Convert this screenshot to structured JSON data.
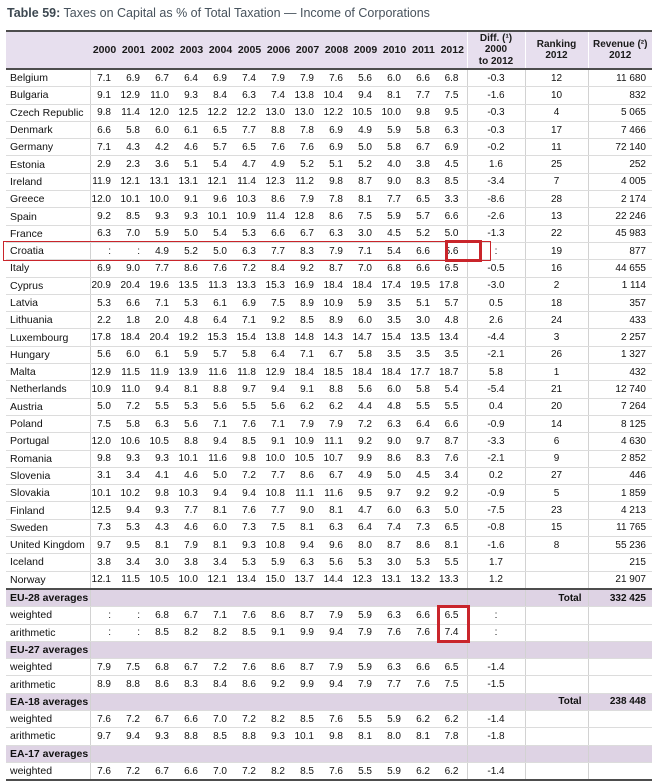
{
  "title": {
    "label": "Table 59:",
    "text": "Taxes on Capital as % of Total Taxation — Income of Corporations"
  },
  "colors": {
    "annotation_red": "#c9252b",
    "header_bg": "#e7dfee",
    "section_band_bg": "#ded3e4",
    "dark_rule": "#4d4d4d",
    "title_color": "#3d4851"
  },
  "table": {
    "year_columns": [
      "2000",
      "2001",
      "2002",
      "2003",
      "2004",
      "2005",
      "2006",
      "2007",
      "2008",
      "2009",
      "2010",
      "2011",
      "2012"
    ],
    "diff_header_lines": [
      "Diff. (¹)",
      "2000",
      "to 2012"
    ],
    "ranking_header_lines": [
      "Ranking",
      "2012"
    ],
    "revenue_header_lines": [
      "Revenue (²)",
      "2012"
    ],
    "rows": [
      {
        "name": "Belgium",
        "type": "country",
        "values": [
          "7.1",
          "6.9",
          "6.7",
          "6.4",
          "6.9",
          "7.4",
          "7.9",
          "7.9",
          "7.6",
          "5.6",
          "6.0",
          "6.6",
          "6.8"
        ],
        "diff": "-0.3",
        "ranking": "12",
        "revenue": "11 680"
      },
      {
        "name": "Bulgaria",
        "type": "country",
        "values": [
          "9.1",
          "12.9",
          "11.0",
          "9.3",
          "8.4",
          "6.3",
          "7.4",
          "13.8",
          "10.4",
          "9.4",
          "8.1",
          "7.7",
          "7.5"
        ],
        "diff": "-1.6",
        "ranking": "10",
        "revenue": "832"
      },
      {
        "name": "Czech Republic",
        "type": "country",
        "values": [
          "9.8",
          "11.4",
          "12.0",
          "12.5",
          "12.2",
          "12.2",
          "13.0",
          "13.0",
          "12.2",
          "10.5",
          "10.0",
          "9.8",
          "9.5"
        ],
        "diff": "-0.3",
        "ranking": "4",
        "revenue": "5 065"
      },
      {
        "name": "Denmark",
        "type": "country",
        "values": [
          "6.6",
          "5.8",
          "6.0",
          "6.1",
          "6.5",
          "7.7",
          "8.8",
          "7.8",
          "6.9",
          "4.9",
          "5.9",
          "5.8",
          "6.3"
        ],
        "diff": "-0.3",
        "ranking": "17",
        "revenue": "7 466"
      },
      {
        "name": "Germany",
        "type": "country",
        "values": [
          "7.1",
          "4.3",
          "4.2",
          "4.6",
          "5.7",
          "6.5",
          "7.6",
          "7.6",
          "6.9",
          "5.0",
          "5.8",
          "6.7",
          "6.9"
        ],
        "diff": "-0.2",
        "ranking": "11",
        "revenue": "72 140"
      },
      {
        "name": "Estonia",
        "type": "country",
        "values": [
          "2.9",
          "2.3",
          "3.6",
          "5.1",
          "5.4",
          "4.7",
          "4.9",
          "5.2",
          "5.1",
          "5.2",
          "4.0",
          "3.8",
          "4.5"
        ],
        "diff": "1.6",
        "ranking": "25",
        "revenue": "252"
      },
      {
        "name": "Ireland",
        "type": "country",
        "values": [
          "11.9",
          "12.1",
          "13.1",
          "13.1",
          "12.1",
          "11.4",
          "12.3",
          "11.2",
          "9.8",
          "8.7",
          "9.0",
          "8.3",
          "8.5"
        ],
        "diff": "-3.4",
        "ranking": "7",
        "revenue": "4 005"
      },
      {
        "name": "Greece",
        "type": "country",
        "values": [
          "12.0",
          "10.1",
          "10.0",
          "9.1",
          "9.6",
          "10.3",
          "8.6",
          "7.9",
          "7.8",
          "8.1",
          "7.7",
          "6.5",
          "3.3"
        ],
        "diff": "-8.6",
        "ranking": "28",
        "revenue": "2 174"
      },
      {
        "name": "Spain",
        "type": "country",
        "values": [
          "9.2",
          "8.5",
          "9.3",
          "9.3",
          "10.1",
          "10.9",
          "11.4",
          "12.8",
          "8.6",
          "7.5",
          "5.9",
          "5.7",
          "6.6"
        ],
        "diff": "-2.6",
        "ranking": "13",
        "revenue": "22 246"
      },
      {
        "name": "France",
        "type": "country",
        "values": [
          "6.3",
          "7.0",
          "5.9",
          "5.0",
          "5.4",
          "5.3",
          "6.6",
          "6.7",
          "6.3",
          "3.0",
          "4.5",
          "5.2",
          "5.0"
        ],
        "diff": "-1.3",
        "ranking": "22",
        "revenue": "45 983"
      },
      {
        "name": "Croatia",
        "type": "country",
        "outline": true,
        "box": "croatia",
        "values": [
          ":",
          ":",
          "4.9",
          "5.2",
          "5.0",
          "6.3",
          "7.7",
          "8.3",
          "7.9",
          "7.1",
          "5.4",
          "6.6",
          "5.6"
        ],
        "diff": ":",
        "ranking": "19",
        "revenue": "877"
      },
      {
        "name": "Italy",
        "type": "country",
        "values": [
          "6.9",
          "9.0",
          "7.7",
          "8.6",
          "7.6",
          "7.2",
          "8.4",
          "9.2",
          "8.7",
          "7.0",
          "6.8",
          "6.6",
          "6.5"
        ],
        "diff": "-0.5",
        "ranking": "16",
        "revenue": "44 655"
      },
      {
        "name": "Cyprus",
        "type": "country",
        "values": [
          "20.9",
          "20.4",
          "19.6",
          "13.5",
          "11.3",
          "13.3",
          "15.3",
          "16.9",
          "18.4",
          "18.4",
          "17.4",
          "19.5",
          "17.8"
        ],
        "diff": "-3.0",
        "ranking": "2",
        "revenue": "1 114"
      },
      {
        "name": "Latvia",
        "type": "country",
        "values": [
          "5.3",
          "6.6",
          "7.1",
          "5.3",
          "6.1",
          "6.9",
          "7.5",
          "8.9",
          "10.9",
          "5.9",
          "3.5",
          "5.1",
          "5.7"
        ],
        "diff": "0.5",
        "ranking": "18",
        "revenue": "357"
      },
      {
        "name": "Lithuania",
        "type": "country",
        "values": [
          "2.2",
          "1.8",
          "2.0",
          "4.8",
          "6.4",
          "7.1",
          "9.2",
          "8.5",
          "8.9",
          "6.0",
          "3.5",
          "3.0",
          "4.8"
        ],
        "diff": "2.6",
        "ranking": "24",
        "revenue": "433"
      },
      {
        "name": "Luxembourg",
        "type": "country",
        "values": [
          "17.8",
          "18.4",
          "20.4",
          "19.2",
          "15.3",
          "15.4",
          "13.8",
          "14.8",
          "14.3",
          "14.7",
          "15.4",
          "13.5",
          "13.4"
        ],
        "diff": "-4.4",
        "ranking": "3",
        "revenue": "2 257"
      },
      {
        "name": "Hungary",
        "type": "country",
        "values": [
          "5.6",
          "6.0",
          "6.1",
          "5.9",
          "5.7",
          "5.8",
          "6.4",
          "7.1",
          "6.7",
          "5.8",
          "3.5",
          "3.5",
          "3.5"
        ],
        "diff": "-2.1",
        "ranking": "26",
        "revenue": "1 327"
      },
      {
        "name": "Malta",
        "type": "country",
        "values": [
          "12.9",
          "11.5",
          "11.9",
          "13.9",
          "11.6",
          "11.8",
          "12.9",
          "18.4",
          "18.5",
          "18.4",
          "18.4",
          "17.7",
          "18.7"
        ],
        "diff": "5.8",
        "ranking": "1",
        "revenue": "432"
      },
      {
        "name": "Netherlands",
        "type": "country",
        "values": [
          "10.9",
          "11.0",
          "9.4",
          "8.1",
          "8.8",
          "9.7",
          "9.4",
          "9.1",
          "8.8",
          "5.6",
          "6.0",
          "5.8",
          "5.4"
        ],
        "diff": "-5.4",
        "ranking": "21",
        "revenue": "12 740"
      },
      {
        "name": "Austria",
        "type": "country",
        "values": [
          "5.0",
          "7.2",
          "5.5",
          "5.3",
          "5.6",
          "5.5",
          "5.6",
          "6.2",
          "6.2",
          "4.4",
          "4.8",
          "5.5",
          "5.5"
        ],
        "diff": "0.4",
        "ranking": "20",
        "revenue": "7 264"
      },
      {
        "name": "Poland",
        "type": "country",
        "values": [
          "7.5",
          "5.8",
          "6.3",
          "5.6",
          "7.1",
          "7.6",
          "7.1",
          "7.9",
          "7.9",
          "7.2",
          "6.3",
          "6.4",
          "6.6"
        ],
        "diff": "-0.9",
        "ranking": "14",
        "revenue": "8 125"
      },
      {
        "name": "Portugal",
        "type": "country",
        "values": [
          "12.0",
          "10.6",
          "10.5",
          "8.8",
          "9.4",
          "8.5",
          "9.1",
          "10.9",
          "11.1",
          "9.2",
          "9.0",
          "9.7",
          "8.7"
        ],
        "diff": "-3.3",
        "ranking": "6",
        "revenue": "4 630"
      },
      {
        "name": "Romania",
        "type": "country",
        "values": [
          "9.8",
          "9.3",
          "9.3",
          "10.1",
          "11.6",
          "9.8",
          "10.0",
          "10.5",
          "10.7",
          "9.9",
          "8.6",
          "8.3",
          "7.6"
        ],
        "diff": "-2.1",
        "ranking": "9",
        "revenue": "2 852"
      },
      {
        "name": "Slovenia",
        "type": "country",
        "values": [
          "3.1",
          "3.4",
          "4.1",
          "4.6",
          "5.0",
          "7.2",
          "7.7",
          "8.6",
          "6.7",
          "4.9",
          "5.0",
          "4.5",
          "3.4"
        ],
        "diff": "0.2",
        "ranking": "27",
        "revenue": "446"
      },
      {
        "name": "Slovakia",
        "type": "country",
        "values": [
          "10.1",
          "10.2",
          "9.8",
          "10.3",
          "9.4",
          "9.4",
          "10.8",
          "11.1",
          "11.6",
          "9.5",
          "9.7",
          "9.2",
          "9.2"
        ],
        "diff": "-0.9",
        "ranking": "5",
        "revenue": "1 859"
      },
      {
        "name": "Finland",
        "type": "country",
        "values": [
          "12.5",
          "9.4",
          "9.3",
          "7.7",
          "8.1",
          "7.6",
          "7.7",
          "9.0",
          "8.1",
          "4.7",
          "6.0",
          "6.3",
          "5.0"
        ],
        "diff": "-7.5",
        "ranking": "23",
        "revenue": "4 213"
      },
      {
        "name": "Sweden",
        "type": "country",
        "values": [
          "7.3",
          "5.3",
          "4.3",
          "4.6",
          "6.0",
          "7.3",
          "7.5",
          "8.1",
          "6.3",
          "6.4",
          "7.4",
          "7.3",
          "6.5"
        ],
        "diff": "-0.8",
        "ranking": "15",
        "revenue": "11 765"
      },
      {
        "name": "United Kingdom",
        "type": "country",
        "values": [
          "9.7",
          "9.5",
          "8.1",
          "7.9",
          "8.1",
          "9.3",
          "10.8",
          "9.4",
          "9.6",
          "8.0",
          "8.7",
          "8.6",
          "8.1"
        ],
        "diff": "-1.6",
        "ranking": "8",
        "revenue": "55 236"
      },
      {
        "name": "Iceland",
        "type": "country",
        "values": [
          "3.8",
          "3.4",
          "3.0",
          "3.8",
          "3.4",
          "5.3",
          "5.9",
          "6.3",
          "5.6",
          "5.3",
          "3.0",
          "5.3",
          "5.5"
        ],
        "diff": "1.7",
        "ranking": "",
        "revenue": "215"
      },
      {
        "name": "Norway",
        "type": "country",
        "values": [
          "12.1",
          "11.5",
          "10.5",
          "10.0",
          "12.1",
          "13.4",
          "15.0",
          "13.7",
          "14.4",
          "12.3",
          "13.1",
          "13.2",
          "13.3"
        ],
        "diff": "1.2",
        "ranking": "",
        "revenue": "21 907"
      },
      {
        "name": "EU-28 averages",
        "type": "section",
        "rule_top": true,
        "total_label": "Total",
        "total_value": "332 425"
      },
      {
        "name": "weighted",
        "type": "sub",
        "box": "eu28",
        "values": [
          ":",
          ":",
          "6.8",
          "6.7",
          "7.1",
          "7.6",
          "8.6",
          "8.7",
          "7.9",
          "5.9",
          "6.3",
          "6.6",
          "6.5"
        ],
        "diff": ":",
        "ranking": "",
        "revenue": ""
      },
      {
        "name": "arithmetic",
        "type": "sub",
        "box": "eu28",
        "values": [
          ":",
          ":",
          "8.5",
          "8.2",
          "8.2",
          "8.5",
          "9.1",
          "9.9",
          "9.4",
          "7.9",
          "7.6",
          "7.6",
          "7.4"
        ],
        "diff": ":",
        "ranking": "",
        "revenue": ""
      },
      {
        "name": "EU-27 averages",
        "type": "section",
        "total_label": "",
        "total_value": ""
      },
      {
        "name": "weighted",
        "type": "sub",
        "values": [
          "7.9",
          "7.5",
          "6.8",
          "6.7",
          "7.2",
          "7.6",
          "8.6",
          "8.7",
          "7.9",
          "5.9",
          "6.3",
          "6.6",
          "6.5"
        ],
        "diff": "-1.4",
        "ranking": "",
        "revenue": ""
      },
      {
        "name": "arithmetic",
        "type": "sub",
        "values": [
          "8.9",
          "8.8",
          "8.6",
          "8.3",
          "8.4",
          "8.6",
          "9.2",
          "9.9",
          "9.4",
          "7.9",
          "7.7",
          "7.6",
          "7.5"
        ],
        "diff": "-1.5",
        "ranking": "",
        "revenue": ""
      },
      {
        "name": "EA-18 averages",
        "type": "section",
        "total_label": "Total",
        "total_value": "238 448"
      },
      {
        "name": "weighted",
        "type": "sub",
        "values": [
          "7.6",
          "7.2",
          "6.7",
          "6.6",
          "7.0",
          "7.2",
          "8.2",
          "8.5",
          "7.6",
          "5.5",
          "5.9",
          "6.2",
          "6.2"
        ],
        "diff": "-1.4",
        "ranking": "",
        "revenue": ""
      },
      {
        "name": "arithmetic",
        "type": "sub",
        "values": [
          "9.7",
          "9.4",
          "9.3",
          "8.8",
          "8.5",
          "8.8",
          "9.3",
          "10.1",
          "9.8",
          "8.1",
          "8.0",
          "8.1",
          "7.8"
        ],
        "diff": "-1.8",
        "ranking": "",
        "revenue": ""
      },
      {
        "name": "EA-17 averages",
        "type": "section",
        "total_label": "",
        "total_value": ""
      },
      {
        "name": "weighted",
        "type": "sub",
        "values": [
          "7.6",
          "7.2",
          "6.7",
          "6.6",
          "7.0",
          "7.2",
          "8.2",
          "8.5",
          "7.6",
          "5.5",
          "5.9",
          "6.2",
          "6.2"
        ],
        "diff": "-1.4",
        "ranking": "",
        "revenue": ""
      }
    ]
  }
}
